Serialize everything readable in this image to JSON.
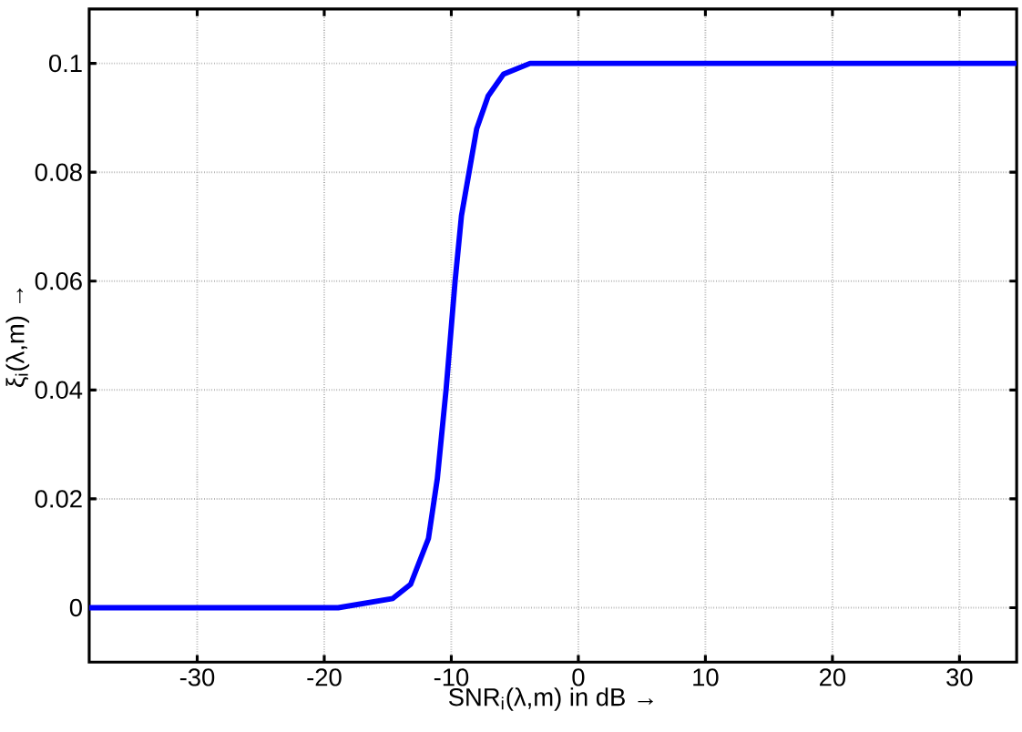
{
  "chart_data": {
    "type": "line",
    "xlabel": "SNR$_{i}$(λ,m) in dB →",
    "ylabel": "ξ$_{i}$(λ,m) →",
    "xlim": [
      -38.5,
      34.5
    ],
    "ylim": [
      -0.01,
      0.11
    ],
    "xticks": [
      -30,
      -20,
      -10,
      0,
      10,
      20,
      30
    ],
    "yticks": [
      0,
      0.02,
      0.04,
      0.06,
      0.08,
      0.1
    ],
    "grid": true,
    "line_style": "solid",
    "marker": "none",
    "series": [
      {
        "color": "#0000ff",
        "x": [
          -38.5,
          -18.9,
          -14.6,
          -13.2,
          -11.8,
          -11.1,
          -10.4,
          -9.7,
          -9.2,
          -8.0,
          -7.1,
          -5.9,
          -3.8,
          34.5
        ],
        "values": [
          0,
          0,
          0.0017,
          0.0043,
          0.0127,
          0.0237,
          0.0403,
          0.06,
          0.072,
          0.088,
          0.094,
          0.098,
          0.1,
          0.1
        ]
      }
    ]
  }
}
